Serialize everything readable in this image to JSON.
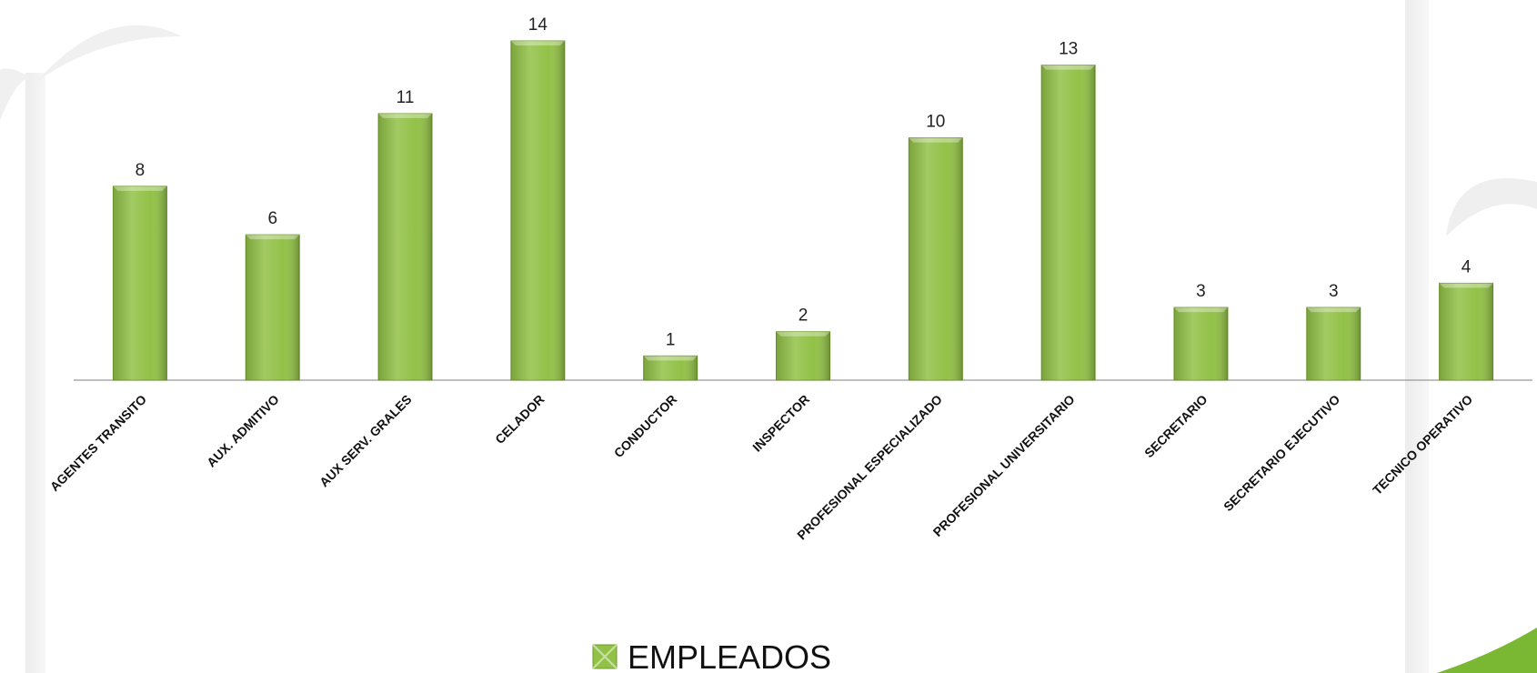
{
  "chart_data": {
    "type": "bar",
    "categories": [
      "AGENTES TRANSITO",
      "AUX. ADMITIVO",
      "AUX SERV. GRALES",
      "CELADOR",
      "CONDUCTOR",
      "INSPECTOR",
      "PROFESIONAL ESPECIALIZADO",
      "PROFESIONAL UNIVERSITARIO",
      "SECRETARIO",
      "SECRETARIO EJECUTIVO",
      "TECNICO OPERATIVO"
    ],
    "series": [
      {
        "name": "EMPLEADOS",
        "color": "#92c147",
        "values": [
          8,
          6,
          11,
          14,
          1,
          2,
          10,
          13,
          3,
          3,
          4
        ]
      }
    ],
    "legend": "bottom"
  }
}
